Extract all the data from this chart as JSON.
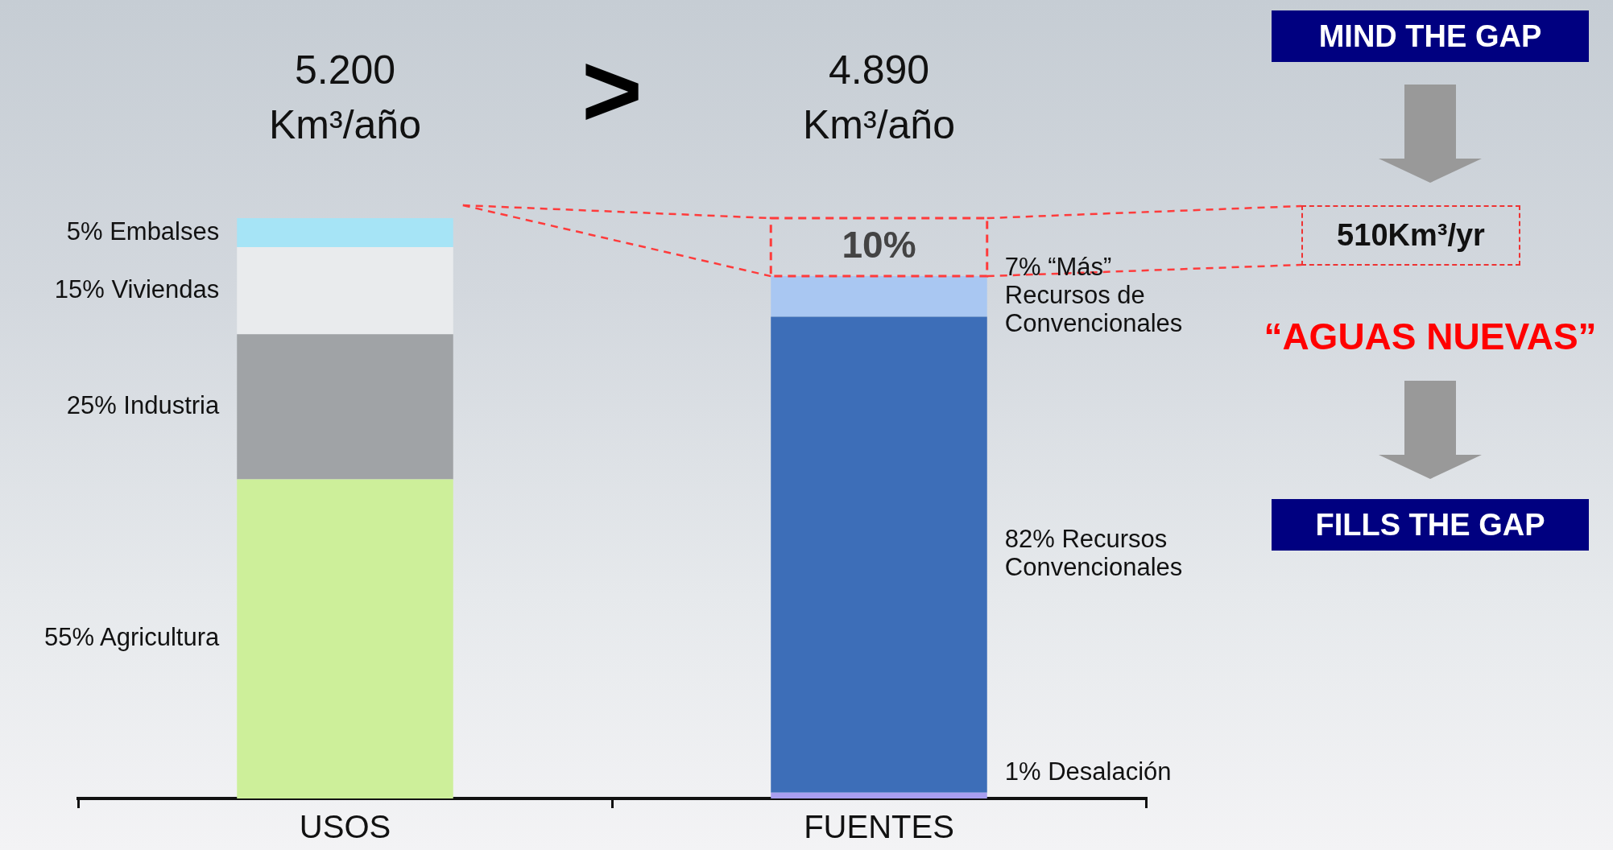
{
  "chart_data": {
    "type": "bar",
    "stacked": true,
    "categories": [
      "USOS",
      "FUENTES"
    ],
    "series": [
      {
        "name": "Agricultura",
        "color": "#cdef9a",
        "values": [
          55,
          null
        ],
        "value_labels": [
          "55%",
          null
        ]
      },
      {
        "name": "Industria",
        "color": "#a0a3a6",
        "values": [
          25,
          null
        ],
        "value_labels": [
          "25%",
          null
        ]
      },
      {
        "name": "Viviendas",
        "color": "#e9ebed",
        "values": [
          15,
          null
        ],
        "value_labels": [
          "15%",
          null
        ]
      },
      {
        "name": "Embalses",
        "color": "#a6e4f6",
        "values": [
          5,
          null
        ],
        "value_labels": [
          "5%",
          null
        ]
      },
      {
        "name": "Desalación",
        "color": "#a99ff0",
        "values": [
          null,
          1
        ],
        "value_labels": [
          null,
          "1%"
        ]
      },
      {
        "name": "Recursos Convencionales",
        "color": "#3d6eb8",
        "values": [
          null,
          82
        ],
        "value_labels": [
          null,
          "82%"
        ]
      },
      {
        "name": "“Más” Recursos de Convencionales",
        "color": "#a9c7f2",
        "values": [
          null,
          7
        ],
        "value_labels": [
          null,
          "7%"
        ]
      },
      {
        "color": "#ff3b3b",
        "line_style": "dashed",
        "values": [
          null,
          10
        ],
        "value_labels": [
          null,
          "10%"
        ]
      }
    ],
    "annotations": [
      "5.200 Km³/año",
      ">",
      "4.890 Km³/año",
      "MIND THE GAP",
      "510Km³/yr",
      "“AGUAS NUEVAS”",
      "FILLS THE GAP"
    ],
    "legend": false,
    "grid": false,
    "tick_labels": "x"
  }
}
